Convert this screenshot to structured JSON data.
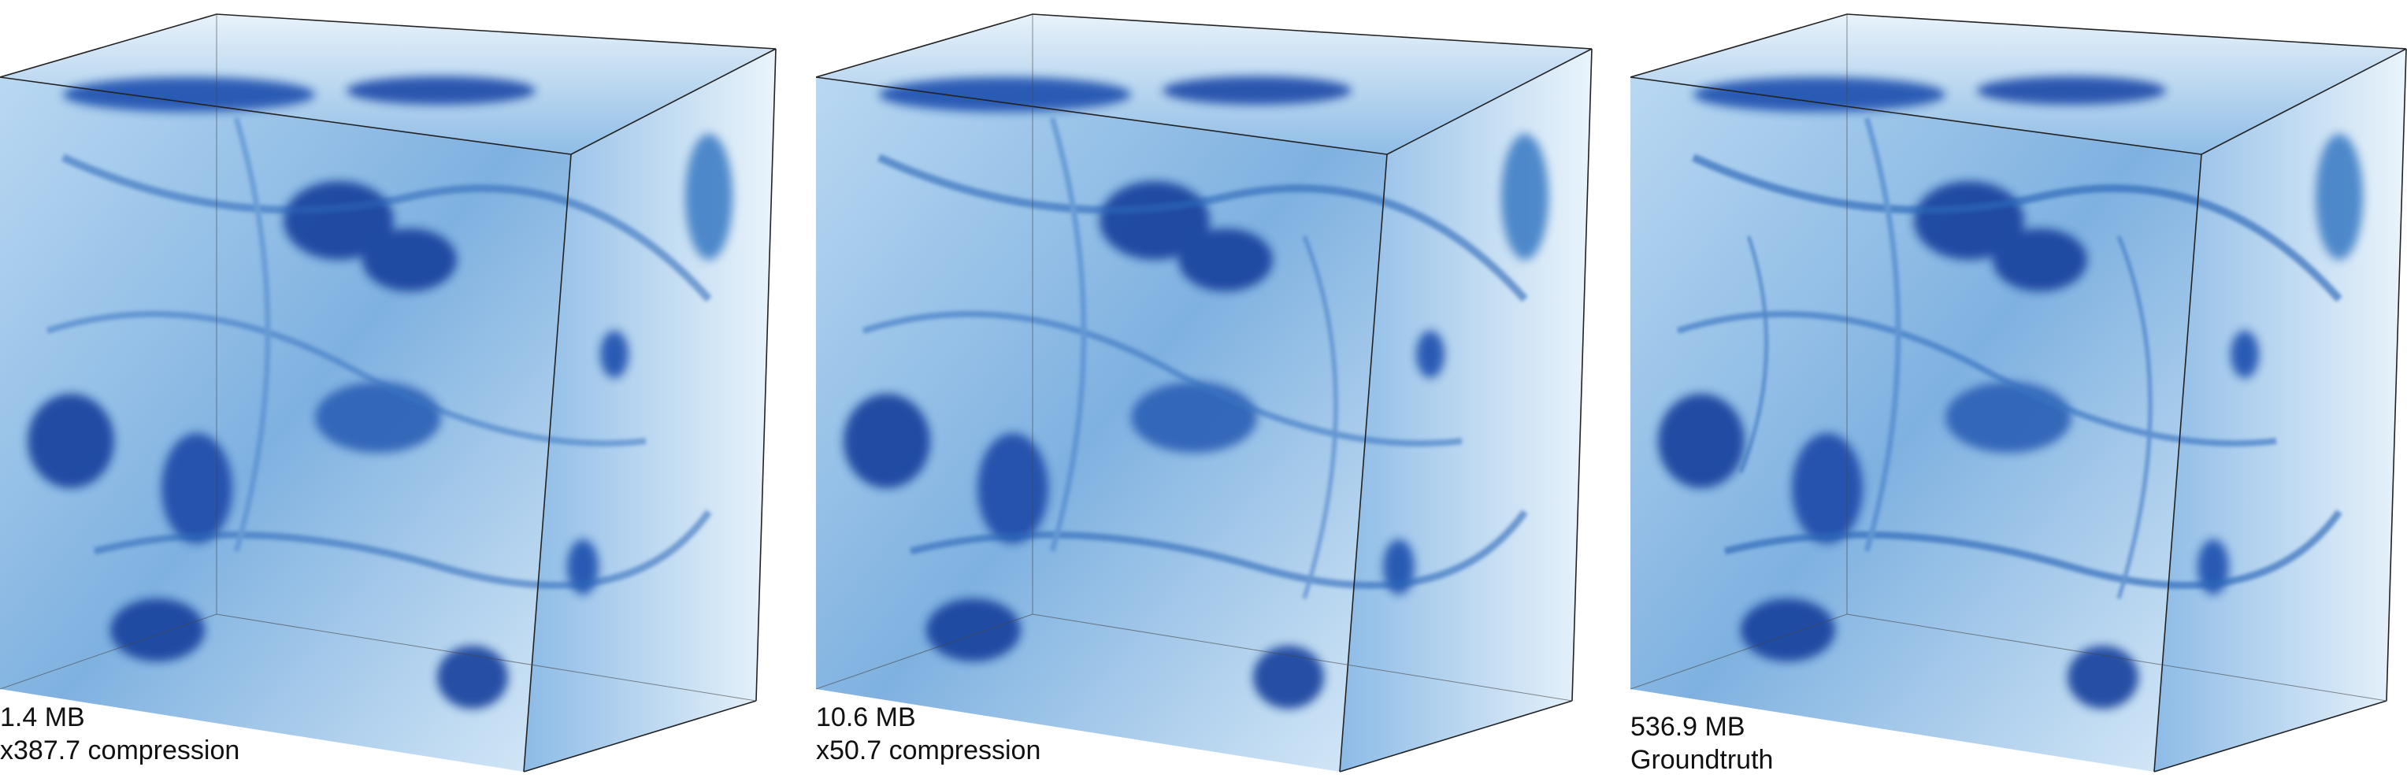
{
  "figure": {
    "panels": [
      {
        "size_label": "1.4 MB",
        "detail_label": "x387.7 compression"
      },
      {
        "size_label": "10.6 MB",
        "detail_label": "x50.7 compression"
      },
      {
        "size_label": "536.9 MB",
        "detail_label": "Groundtruth"
      }
    ],
    "colors": {
      "deep_blue": "#123f9c",
      "mid_blue": "#3f7fc6",
      "light_blue": "#9cc8ec",
      "pale_blue": "#dcecf8",
      "edge_line": "#222222"
    }
  }
}
